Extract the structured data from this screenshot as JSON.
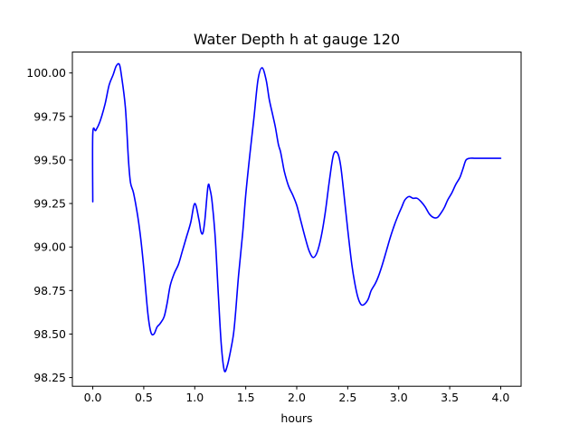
{
  "chart_data": {
    "type": "line",
    "title": "Water Depth h at gauge 120",
    "xlabel": "hours",
    "ylabel": "",
    "xlim": [
      -0.2,
      4.2
    ],
    "ylim": [
      98.2,
      100.12
    ],
    "xticks": [
      0.0,
      0.5,
      1.0,
      1.5,
      2.0,
      2.5,
      3.0,
      3.5,
      4.0
    ],
    "xtick_labels": [
      "0.0",
      "0.5",
      "1.0",
      "1.5",
      "2.0",
      "2.5",
      "3.0",
      "3.5",
      "4.0"
    ],
    "yticks": [
      98.25,
      98.5,
      98.75,
      99.0,
      99.25,
      99.5,
      99.75,
      100.0
    ],
    "ytick_labels": [
      "98.25",
      "98.50",
      "98.75",
      "99.00",
      "99.25",
      "99.50",
      "99.75",
      "100.00"
    ],
    "grid": false,
    "series": [
      {
        "color": "#0000ff",
        "x": [
          0.0,
          0.0,
          0.03,
          0.07,
          0.12,
          0.16,
          0.2,
          0.23,
          0.26,
          0.28,
          0.32,
          0.35,
          0.37,
          0.4,
          0.44,
          0.47,
          0.5,
          0.54,
          0.57,
          0.6,
          0.63,
          0.66,
          0.7,
          0.73,
          0.76,
          0.8,
          0.84,
          0.88,
          0.92,
          0.96,
          1.0,
          1.04,
          1.06,
          1.08,
          1.1,
          1.13,
          1.15,
          1.17,
          1.2,
          1.23,
          1.26,
          1.29,
          1.32,
          1.35,
          1.38,
          1.4,
          1.43,
          1.47,
          1.5,
          1.54,
          1.58,
          1.62,
          1.66,
          1.7,
          1.73,
          1.76,
          1.79,
          1.82,
          1.84,
          1.86,
          1.88,
          1.92,
          1.96,
          2.0,
          2.04,
          2.08,
          2.12,
          2.16,
          2.2,
          2.24,
          2.28,
          2.32,
          2.36,
          2.4,
          2.43,
          2.46,
          2.5,
          2.54,
          2.57,
          2.6,
          2.63,
          2.66,
          2.7,
          2.73,
          2.77,
          2.8,
          2.84,
          2.88,
          2.92,
          2.96,
          3.0,
          3.03,
          3.06,
          3.1,
          3.14,
          3.18,
          3.22,
          3.26,
          3.3,
          3.34,
          3.38,
          3.42,
          3.45,
          3.48,
          3.52,
          3.56,
          3.6,
          3.63,
          3.66,
          3.7,
          3.74,
          3.78,
          3.82,
          3.86,
          3.9,
          3.95,
          4.0
        ],
        "y": [
          99.26,
          99.65,
          99.67,
          99.72,
          99.82,
          99.93,
          99.99,
          100.04,
          100.05,
          99.99,
          99.8,
          99.5,
          99.37,
          99.31,
          99.18,
          99.05,
          98.88,
          98.62,
          98.51,
          98.5,
          98.54,
          98.56,
          98.6,
          98.68,
          98.78,
          98.85,
          98.9,
          98.98,
          99.06,
          99.14,
          99.25,
          99.16,
          99.09,
          99.08,
          99.16,
          99.35,
          99.33,
          99.26,
          99.06,
          98.74,
          98.44,
          98.29,
          98.32,
          98.4,
          98.5,
          98.62,
          98.84,
          99.08,
          99.3,
          99.53,
          99.74,
          99.96,
          100.03,
          99.96,
          99.85,
          99.77,
          99.69,
          99.59,
          99.55,
          99.49,
          99.43,
          99.35,
          99.3,
          99.24,
          99.15,
          99.06,
          98.98,
          98.94,
          98.97,
          99.06,
          99.2,
          99.38,
          99.53,
          99.54,
          99.47,
          99.32,
          99.1,
          98.9,
          98.79,
          98.71,
          98.67,
          98.67,
          98.7,
          98.75,
          98.79,
          98.83,
          98.9,
          98.98,
          99.06,
          99.13,
          99.19,
          99.23,
          99.27,
          99.29,
          99.28,
          99.28,
          99.26,
          99.23,
          99.19,
          99.17,
          99.17,
          99.2,
          99.23,
          99.27,
          99.31,
          99.36,
          99.4,
          99.45,
          99.5,
          99.51,
          99.51,
          99.51,
          99.51,
          99.51,
          99.51,
          99.51,
          99.51
        ]
      }
    ]
  }
}
